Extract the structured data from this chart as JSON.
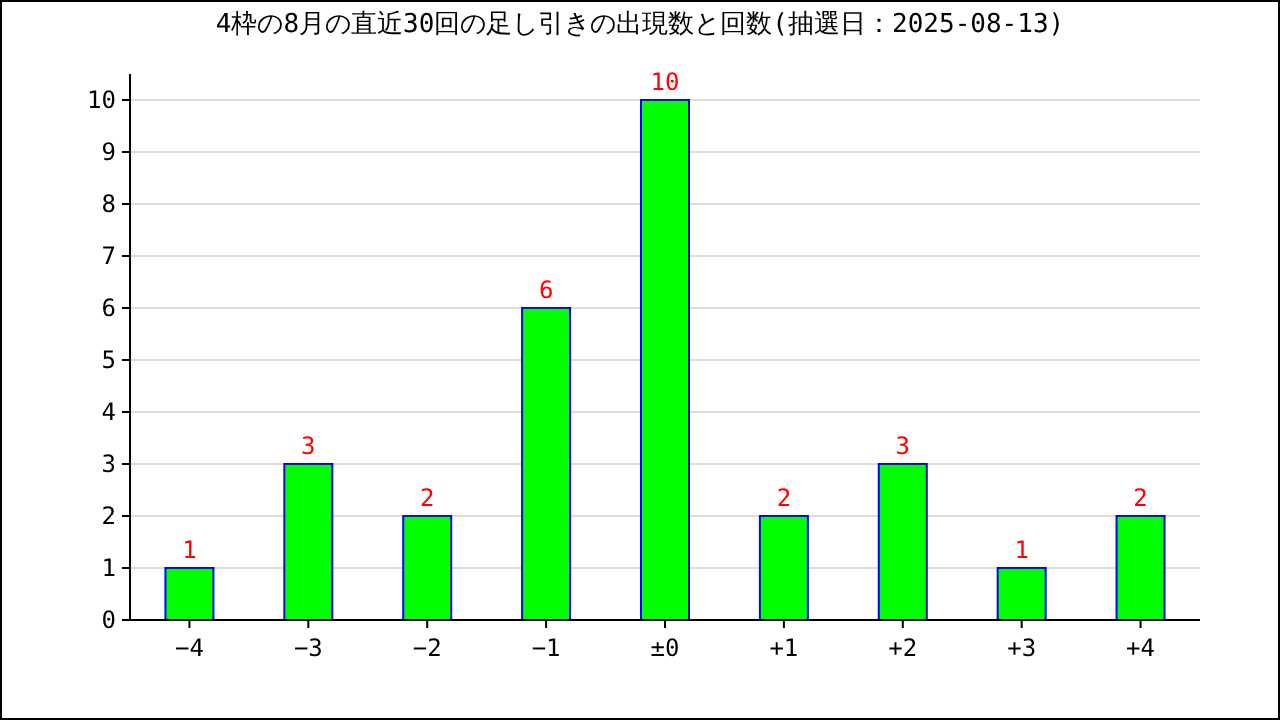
{
  "chart_data": {
    "type": "bar",
    "title": "4枠の8月の直近30回の足し引きの出現数と回数(抽選日：2025-08-13)",
    "categories": [
      "−4",
      "−3",
      "−2",
      "−1",
      "±0",
      "+1",
      "+2",
      "+3",
      "+4"
    ],
    "values": [
      1,
      3,
      2,
      6,
      10,
      2,
      3,
      1,
      2
    ],
    "color": "#00ff00",
    "ylim": [
      0,
      10.5
    ],
    "yticks": [
      0,
      1,
      2,
      3,
      4,
      5,
      6,
      7,
      8,
      9,
      10
    ],
    "grid": "y",
    "data_labels": true
  }
}
